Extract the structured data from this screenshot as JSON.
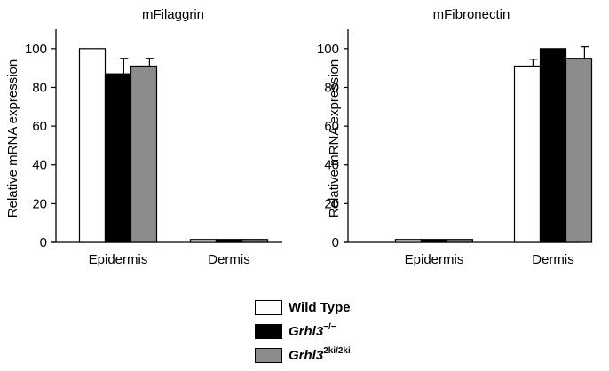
{
  "colors": {
    "wild_type": "#ffffff",
    "grhl3_ko": "#000000",
    "grhl3_ki": "#8c8c8c",
    "axis": "#000000"
  },
  "legend": {
    "position": "bottom-center",
    "items": [
      {
        "label": "Wild Type",
        "base": "",
        "sup": "",
        "color": "#ffffff"
      },
      {
        "label": "",
        "base": "Grhl3",
        "sup": "−/−",
        "color": "#000000"
      },
      {
        "label": "",
        "base": "Grhl3",
        "sup": "2ki/2ki",
        "color": "#8c8c8c"
      }
    ]
  },
  "chart_data": [
    {
      "type": "bar",
      "title": "mFilaggrin",
      "xlabel": "",
      "ylabel": "Relative mRNA expression",
      "ylim": [
        0,
        110
      ],
      "yticks": [
        "0",
        "20",
        "40",
        "60",
        "80",
        "100"
      ],
      "categories": [
        "Epidermis",
        "Dermis"
      ],
      "grid": false,
      "series": [
        {
          "values": [
            100,
            1.5
          ],
          "errors": [
            0,
            0
          ]
        },
        {
          "values": [
            87,
            1.5
          ],
          "errors": [
            8,
            0
          ]
        },
        {
          "values": [
            91,
            1.5
          ],
          "errors": [
            4,
            0
          ]
        }
      ]
    },
    {
      "type": "bar",
      "title": "mFibronectin",
      "xlabel": "",
      "ylabel": "Relative mRNA expression",
      "ylim": [
        0,
        110
      ],
      "yticks": [
        "0",
        "20",
        "40",
        "60",
        "80",
        "100"
      ],
      "categories": [
        "Epidermis",
        "Dermis"
      ],
      "grid": false,
      "series": [
        {
          "values": [
            1.5,
            91
          ],
          "errors": [
            0,
            3.5
          ]
        },
        {
          "values": [
            1.5,
            100
          ],
          "errors": [
            0,
            0
          ]
        },
        {
          "values": [
            1.5,
            95
          ],
          "errors": [
            0,
            6
          ]
        }
      ]
    }
  ]
}
